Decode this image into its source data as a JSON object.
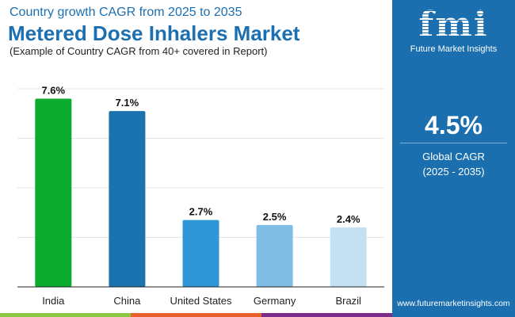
{
  "header": {
    "subtitle": "Country growth CAGR from 2025 to 2035",
    "title": "Metered Dose Inhalers Market",
    "note": "(Example of Country CAGR from 40+ covered in Report)"
  },
  "sidebar": {
    "logo_text": "fmi",
    "logo_caption": "Future Market Insights",
    "global_value": "4.5%",
    "global_label": "Global CAGR",
    "global_period": "(2025 - 2035)",
    "url": "www.futuremarketinsights.com",
    "background": "#1b6fae"
  },
  "stripes": [
    "#8dc63f",
    "#e8602c",
    "#7b2d8b"
  ],
  "chart_data": {
    "type": "bar",
    "categories": [
      "India",
      "China",
      "United States",
      "Germany",
      "Brazil"
    ],
    "values": [
      7.6,
      7.1,
      2.7,
      2.5,
      2.4
    ],
    "data_labels": [
      "7.6%",
      "7.1%",
      "2.7%",
      "2.5%",
      "2.4%"
    ],
    "colors": [
      "#0aab2f",
      "#1a72ae",
      "#2f96d8",
      "#7fbde4",
      "#c4e1f4"
    ],
    "ylim": [
      0,
      8
    ],
    "grid": true,
    "title": "",
    "xlabel": "",
    "ylabel": ""
  }
}
